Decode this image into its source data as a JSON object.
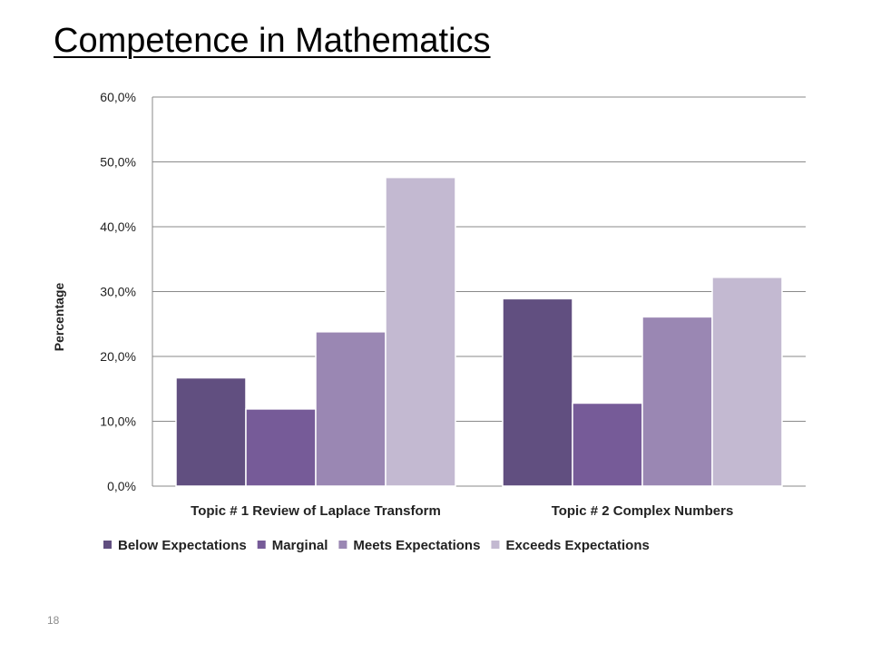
{
  "slide": {
    "title": "Competence in Mathematics",
    "page_number": "18"
  },
  "chart_data": {
    "type": "bar",
    "title": "",
    "xlabel": "",
    "ylabel": "Percentage",
    "ylim": [
      0,
      60
    ],
    "yticks": [
      0,
      10,
      20,
      30,
      40,
      50,
      60
    ],
    "ytick_labels": [
      "0,0%",
      "10,0%",
      "20,0%",
      "30,0%",
      "40,0%",
      "50,0%",
      "60,0%"
    ],
    "grid": true,
    "legend_position": "bottom",
    "categories": [
      "Topic # 1 Review of Laplace Transform",
      "Topic # 2 Complex Numbers"
    ],
    "series": [
      {
        "name": "Below Expectations",
        "values": [
          16.7,
          28.9
        ],
        "color": "#614f80"
      },
      {
        "name": "Marginal",
        "values": [
          11.9,
          12.8
        ],
        "color": "#765b98"
      },
      {
        "name": "Meets Expectations",
        "values": [
          23.8,
          26.1
        ],
        "color": "#9a87b3"
      },
      {
        "name": "Exceeds Expectations",
        "values": [
          47.6,
          32.2
        ],
        "color": "#c3b9d1"
      }
    ]
  }
}
